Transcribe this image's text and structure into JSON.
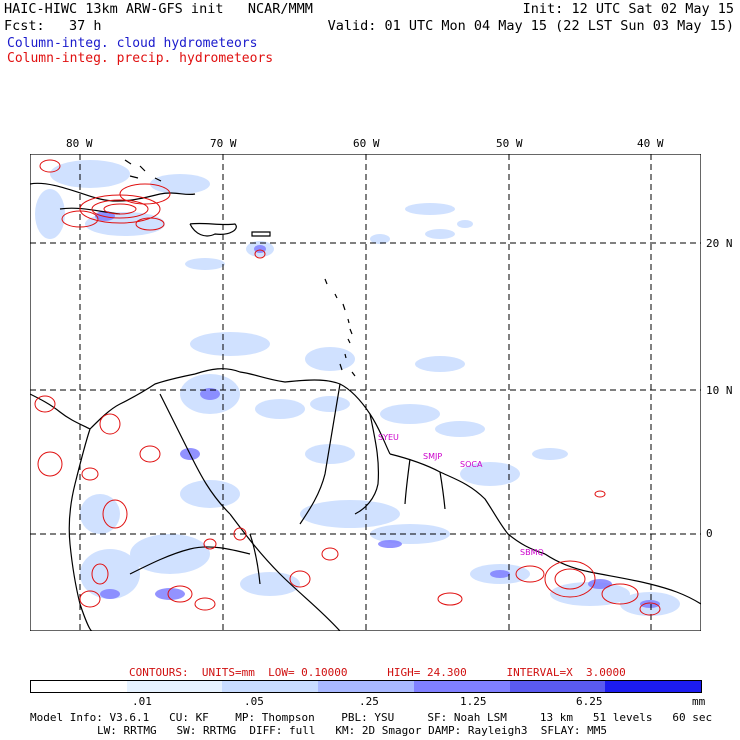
{
  "header": {
    "title_left": "HAIC-HIWC 13km ARW-GFS init   NCAR/MMM",
    "init": "Init: 12 UTC Sat 02 May 15",
    "fcst": "Fcst:   37 h",
    "valid": "Valid: 01 UTC Mon 04 May 15 (22 LST Sun 03 May 15)"
  },
  "legend": {
    "cloud_label": "Column-integ. cloud hydrometeors",
    "precip_label": "Column-integ. precip. hydrometeors",
    "cloud_color": "#1a1acc",
    "precip_color": "#e01010"
  },
  "map": {
    "lon_labels": [
      "80 W",
      "70 W",
      "60 W",
      "50 W",
      "40 W"
    ],
    "lat_labels": [
      "20 N",
      "10 N",
      "0"
    ],
    "stations": [
      "SYEU",
      "SMJP",
      "SOCA",
      "SBMQ"
    ],
    "colors": {
      "land_border": "#000000",
      "grid": "#000000"
    }
  },
  "contours": {
    "text": "CONTOURS:  UNITS=mm  LOW= 0.10000      HIGH= 24.300      INTERVAL=X  3.0000"
  },
  "colorbar": {
    "units": "mm",
    "tick_labels": [
      ".01",
      ".05",
      ".25",
      "1.25",
      "6.25"
    ],
    "colors": [
      "#ffffff",
      "#e6f2ff",
      "#c8dcff",
      "#a8b8ff",
      "#8080ff",
      "#5a5af0",
      "#1c1cf0"
    ]
  },
  "model_info": {
    "line1": "Model Info: V3.6.1   CU: KF    MP: Thompson    PBL: YSU     SF: Noah LSM     13 km   51 levels   60 sec",
    "line2": "LW: RRTMG   SW: RRTMG  DIFF: full   KM: 2D Smagor DAMP: Rayleigh3  SFLAY: MM5"
  }
}
